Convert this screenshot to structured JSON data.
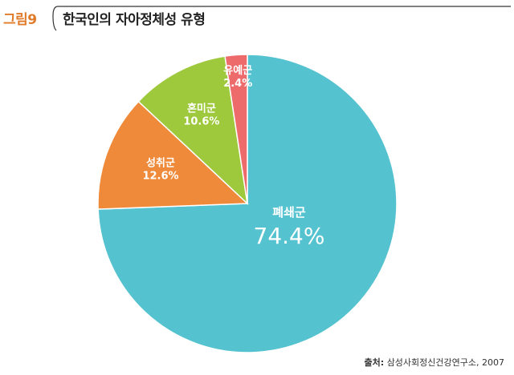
{
  "figure": {
    "label": "그림9",
    "title": "한국인의 자아정체성 유형"
  },
  "source": {
    "prefix": "출처:",
    "text": "삼성사회정신건강연구소, 2007"
  },
  "chart_data": {
    "type": "pie",
    "title": "",
    "slices": [
      {
        "label": "폐쇄군",
        "value": 74.4,
        "display": "74.4%",
        "color": "#54c2cf"
      },
      {
        "label": "성취군",
        "value": 12.6,
        "display": "12.6%",
        "color": "#ef8a3a"
      },
      {
        "label": "혼미군",
        "value": 10.6,
        "display": "10.6%",
        "color": "#9fc93c"
      },
      {
        "label": "유예군",
        "value": 2.4,
        "display": "2.4%",
        "color": "#ee6b6b"
      }
    ]
  }
}
